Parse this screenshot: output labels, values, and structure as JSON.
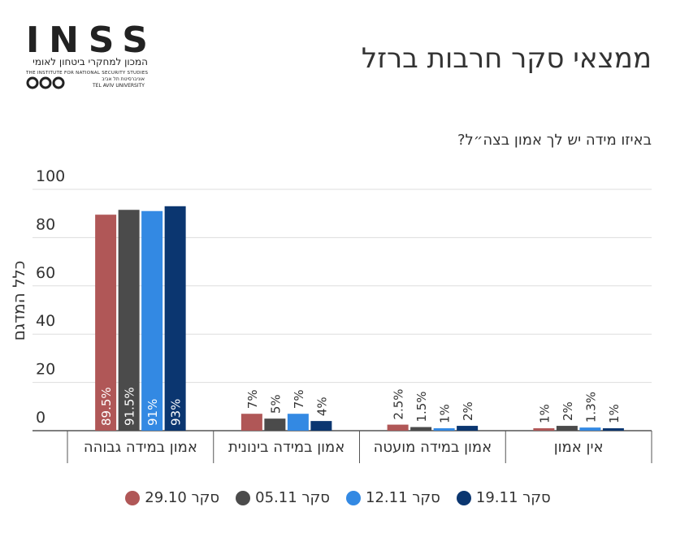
{
  "logo": {
    "name": "INSS",
    "hebrew": "המכון למחקרי ביטחון לאומי",
    "english": "THE INSTITUTE FOR NATIONAL SECURITY STUDIES",
    "university_he": "אוניברסיטת תל אביב",
    "university_en": "TEL AVIV UNIVERSITY"
  },
  "chart_data": {
    "type": "bar",
    "title": "ממצאי סקר חרבות ברזל",
    "subtitle": "באיזו מידה יש לך אמון בצה״ל?",
    "y_label": "כלל המדגם",
    "categories": [
      "אמון במידה גבוהה",
      "אמון במידה בינונית",
      "אמון במידה מועטה",
      "אין אמון"
    ],
    "series": [
      {
        "name": "סקר 29.10",
        "color": "#b05757",
        "values": [
          89.5,
          7,
          2.5,
          1
        ],
        "value_labels": [
          "89.5%",
          "7%",
          "2.5%",
          "1%"
        ]
      },
      {
        "name": "סקר 05.11",
        "color": "#4b4b4b",
        "values": [
          91.5,
          5,
          1.5,
          2
        ],
        "value_labels": [
          "91.5%",
          "5%",
          "1.5%",
          "2%"
        ]
      },
      {
        "name": "סקר 12.11",
        "color": "#3389e3",
        "values": [
          91,
          7,
          1,
          1.3
        ],
        "value_labels": [
          "91%",
          "7%",
          "1%",
          "1.3%"
        ]
      },
      {
        "name": "סקר 19.11",
        "color": "#0b3670",
        "values": [
          93,
          4,
          2,
          1
        ],
        "value_labels": [
          "93%",
          "4%",
          "2%",
          "1%"
        ]
      }
    ],
    "ylim": [
      0,
      100
    ],
    "yticks": [
      0,
      20,
      40,
      60,
      80,
      100
    ],
    "grid": true,
    "legend": "bottom"
  }
}
